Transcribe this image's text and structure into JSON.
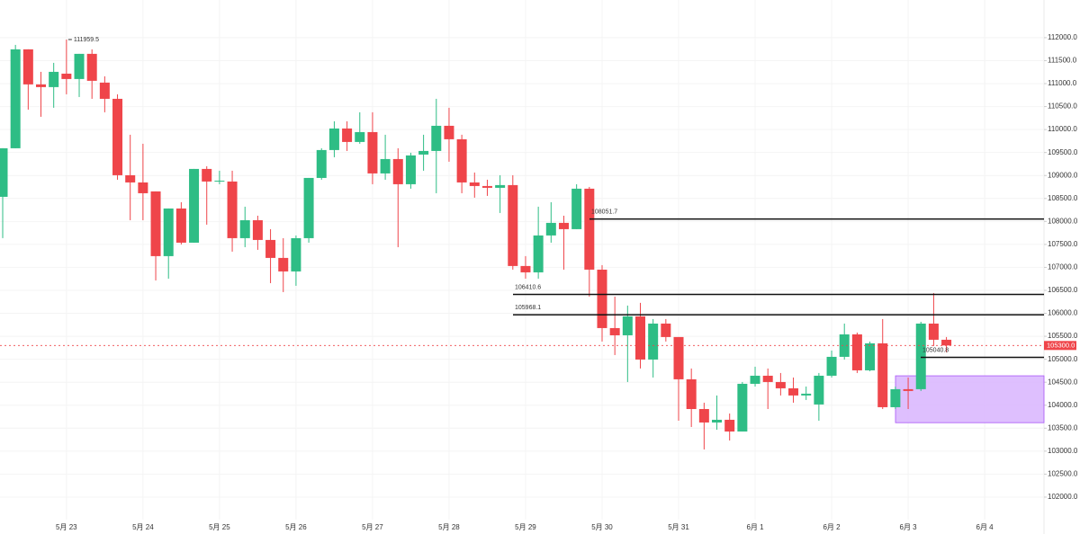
{
  "chart_data": {
    "type": "candlestick",
    "categories": [
      null,
      null,
      null,
      null,
      null,
      "5月 23",
      null,
      null,
      null,
      null,
      null,
      "5月 24",
      null,
      null,
      null,
      null,
      null,
      "5月 25",
      null,
      null,
      null,
      null,
      null,
      "5月 26",
      null,
      null,
      null,
      null,
      null,
      "5月 27",
      null,
      null,
      null,
      null,
      null,
      "5月 28",
      null,
      null,
      null,
      null,
      null,
      "5月 29",
      null,
      null,
      null,
      null,
      null,
      "5月 30",
      null,
      null,
      null,
      null,
      null,
      "5月 31",
      null,
      null,
      null,
      null,
      null,
      "6月 1",
      null,
      null,
      null,
      null,
      null,
      "6月 2",
      null,
      null,
      null,
      null,
      null,
      "6月 3",
      null,
      null,
      null,
      null,
      null,
      "6月 4"
    ],
    "open": [
      108536,
      109593,
      111746,
      110983,
      110924,
      111217,
      111100,
      111648,
      111022,
      110669,
      109006,
      108849,
      108654,
      107245,
      108282,
      107538,
      109143,
      108869,
      108869,
      107636,
      108027,
      107597,
      107206,
      106912,
      107636,
      108947,
      109554,
      110023,
      109730,
      109945,
      109045,
      109358,
      108810,
      109456,
      109534,
      110082,
      109789,
      108849,
      108771,
      108732,
      108791,
      107030,
      106892,
      107695,
      107969,
      107832,
      108713,
      106951,
      105679,
      105522,
      105934,
      104994,
      105777,
      105484,
      104564,
      103917,
      103624,
      103683,
      103428,
      104466,
      104642,
      104505,
      104368,
      104212,
      104016,
      104642,
      105053,
      105542,
      104759,
      105347,
      103957,
      104349,
      104349,
      105777,
      105425,
      null,
      null,
      null
    ],
    "high": [
      109593,
      111843,
      111746,
      111256,
      111452,
      111959.5,
      111648,
      111746,
      111159,
      110767,
      109887,
      109691,
      108654,
      108282,
      108419,
      109143,
      109202,
      109104,
      109104,
      108321,
      108125,
      107832,
      107636,
      107695,
      108947,
      109593,
      110180,
      110180,
      110376,
      110376,
      109887,
      109593,
      109495,
      109887,
      110669,
      110474,
      109887,
      109065,
      108908,
      109006,
      109006,
      107245,
      108321,
      108419,
      108125,
      108810,
      108751,
      107049,
      106364,
      106169,
      106227,
      105875,
      105875,
      105484,
      104799,
      104055,
      104212,
      103820,
      104505,
      104838,
      104799,
      104701,
      104603,
      104407,
      104701,
      105190,
      105777,
      105581,
      105386,
      105875,
      104407,
      104603,
      105816,
      106442,
      105484,
      null,
      null,
      null
    ],
    "low": [
      107636,
      109593,
      110434,
      110278,
      110474,
      110767,
      110708,
      110669,
      110376,
      108908,
      108027,
      108027,
      106716,
      106755,
      107499,
      107538,
      107930,
      108810,
      107343,
      107440,
      107382,
      106657,
      106462,
      106599,
      107538,
      108908,
      109397,
      109534,
      109691,
      108810,
      108908,
      107440,
      108713,
      109104,
      108614,
      109300,
      108614,
      108517,
      108556,
      108184,
      106951,
      106755,
      106755,
      107538,
      106951,
      107832,
      106364,
      105386,
      105092,
      104505,
      104799,
      104603,
      105386,
      103663,
      103526,
      103037,
      103467,
      103232,
      103428,
      104407,
      103917,
      104212,
      104055,
      104114,
      103663,
      104603,
      104994,
      104701,
      104740,
      103917,
      103917,
      103917,
      104310,
      105288,
      105151,
      null,
      null,
      null
    ],
    "close": [
      109593,
      111746,
      110983,
      110924,
      111256,
      111100,
      111648,
      111061,
      110669,
      109006,
      108849,
      108614,
      107245,
      108282,
      107538,
      109143,
      108869,
      108888,
      107636,
      108027,
      107597,
      107206,
      106912,
      107636,
      108947,
      109554,
      110023,
      109730,
      109945,
      109045,
      109358,
      108810,
      109437,
      109534,
      110082,
      109789,
      108849,
      108771,
      108732,
      108791,
      107030,
      106892,
      107695,
      107969,
      107832,
      108713,
      106951,
      105679,
      105522,
      105934,
      104994,
      105777,
      105484,
      104564,
      103917,
      103624,
      103683,
      103428,
      104466,
      104642,
      104505,
      104368,
      104212,
      104251,
      104642,
      105053,
      105542,
      104759,
      105347,
      103957,
      104349,
      104310,
      105777,
      105425,
      105300,
      null,
      null,
      null
    ],
    "up_color": "#2ebd85",
    "down_color": "#ef454a",
    "ylim": [
      101510,
      112820
    ],
    "yticks": [
      {
        "value": 102000,
        "label": "102000.0"
      },
      {
        "value": 102500,
        "label": "102500.0"
      },
      {
        "value": 103000,
        "label": "103000.0"
      },
      {
        "value": 103500,
        "label": "103500.0"
      },
      {
        "value": 104000,
        "label": "104000.0"
      },
      {
        "value": 104500,
        "label": "104500.0"
      },
      {
        "value": 105000,
        "label": "105000.0"
      },
      {
        "value": 105500,
        "label": "105500.0"
      },
      {
        "value": 106000,
        "label": "106000.0"
      },
      {
        "value": 106500,
        "label": "106500.0"
      },
      {
        "value": 107000,
        "label": "107000.0"
      },
      {
        "value": 107500,
        "label": "107500.0"
      },
      {
        "value": 108000,
        "label": "108000.0"
      },
      {
        "value": 108500,
        "label": "108500.0"
      },
      {
        "value": 109000,
        "label": "109000.0"
      },
      {
        "value": 109500,
        "label": "109500.0"
      },
      {
        "value": 110000,
        "label": "110000.0"
      },
      {
        "value": 110500,
        "label": "110500.0"
      },
      {
        "value": 111000,
        "label": "111000.0"
      },
      {
        "value": 111500,
        "label": "111500.0"
      },
      {
        "value": 112000,
        "label": "112000.0"
      }
    ],
    "grid": true,
    "levels": [
      108051.7,
      106410.6,
      105968.1,
      105040.8
    ],
    "high_marker": 111959.5,
    "last_price": {
      "value": 105300,
      "label": "105300.0"
    },
    "zone": [
      103620,
      104640
    ],
    "zone_color": "#d8b4fe"
  }
}
